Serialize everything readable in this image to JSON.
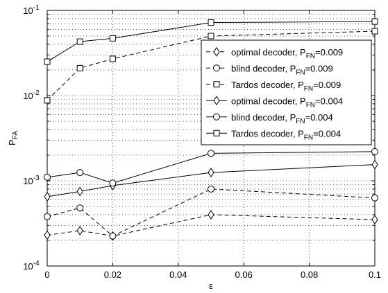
{
  "chart_data": {
    "type": "line",
    "title": "",
    "xlabel": "ε",
    "ylabel": {
      "main": "P",
      "sub": "FA"
    },
    "x": [
      0,
      0.01,
      0.02,
      0.05,
      0.1
    ],
    "xlim": [
      0,
      0.1
    ],
    "ylim": [
      0.0001,
      0.1
    ],
    "yscale": "log",
    "grid": true,
    "xticks": [
      {
        "value": 0,
        "label": "0"
      },
      {
        "value": 0.02,
        "label": "0.02"
      },
      {
        "value": 0.04,
        "label": "0.04"
      },
      {
        "value": 0.06,
        "label": "0.06"
      },
      {
        "value": 0.08,
        "label": "0.08"
      },
      {
        "value": 0.1,
        "label": "0.1"
      }
    ],
    "yticks": [
      {
        "value": 0.0001,
        "base": "10",
        "exp": "-4"
      },
      {
        "value": 0.001,
        "base": "10",
        "exp": "-3"
      },
      {
        "value": 0.01,
        "base": "10",
        "exp": "-2"
      },
      {
        "value": 0.1,
        "base": "10",
        "exp": "-1"
      }
    ],
    "legend_position": "top-right",
    "series": [
      {
        "name": "optimal decoder, P",
        "name_sub": "FN",
        "name_suffix": "=0.009",
        "linestyle": "dashed",
        "marker": "diamond",
        "values": [
          0.00023,
          0.00026,
          0.000225,
          0.0004,
          0.00035
        ]
      },
      {
        "name": "blind decoder, P",
        "name_sub": "FN",
        "name_suffix": "=0.009",
        "linestyle": "dashed",
        "marker": "circle",
        "values": [
          0.00038,
          0.00048,
          0.000225,
          0.0008,
          0.00063
        ]
      },
      {
        "name": "Tardos decoder, P",
        "name_sub": "FN",
        "name_suffix": "=0.009",
        "linestyle": "dashed",
        "marker": "square",
        "values": [
          0.0088,
          0.021,
          0.027,
          0.05,
          0.057
        ]
      },
      {
        "name": "optimal decoder, P",
        "name_sub": "FN",
        "name_suffix": "=0.004",
        "linestyle": "solid",
        "marker": "diamond",
        "values": [
          0.00065,
          0.00075,
          0.00088,
          0.00125,
          0.00155
        ]
      },
      {
        "name": "blind decoder, P",
        "name_sub": "FN",
        "name_suffix": "=0.004",
        "linestyle": "solid",
        "marker": "circle",
        "values": [
          0.0011,
          0.00125,
          0.00094,
          0.0021,
          0.0022
        ]
      },
      {
        "name": "Tardos decoder, P",
        "name_sub": "FN",
        "name_suffix": "=0.004",
        "linestyle": "solid",
        "marker": "square",
        "values": [
          0.025,
          0.043,
          0.047,
          0.072,
          0.074
        ]
      }
    ]
  }
}
